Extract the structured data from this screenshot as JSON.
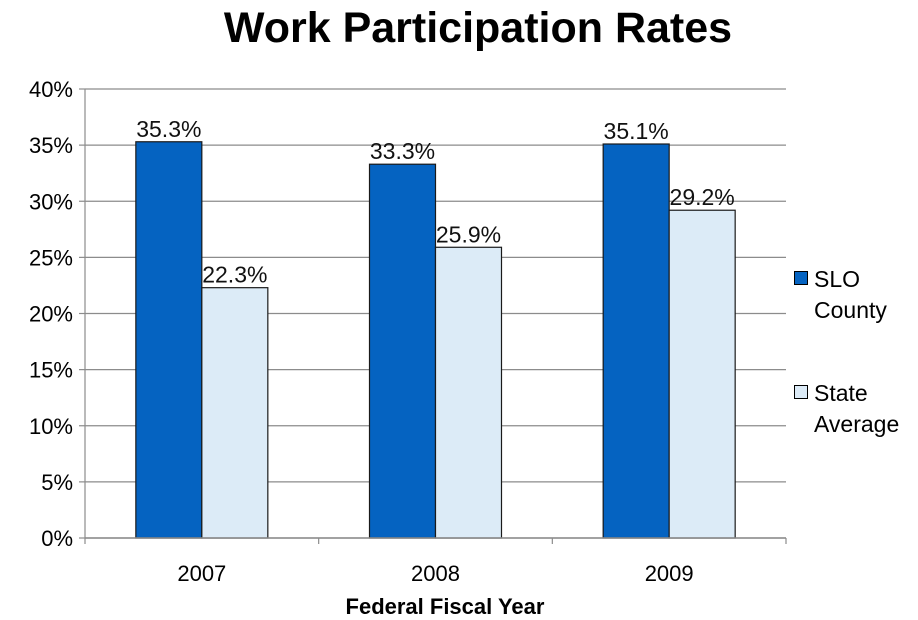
{
  "chart_data": {
    "type": "bar",
    "title": "Work Participation Rates",
    "xlabel": "Federal Fiscal Year",
    "ylabel": "",
    "categories": [
      "2007",
      "2008",
      "2009"
    ],
    "series": [
      {
        "name": "SLO County",
        "values": [
          35.3,
          33.3,
          35.1
        ],
        "color": "#0563C1",
        "labels": [
          "35.3%",
          "33.3%",
          "35.1%"
        ]
      },
      {
        "name": "State Average",
        "values": [
          22.3,
          25.9,
          29.2
        ],
        "color": "#DCEBF7",
        "labels": [
          "22.3%",
          "25.9%",
          "29.2%"
        ]
      }
    ],
    "ylim": [
      0,
      40
    ],
    "yticks": [
      0,
      5,
      10,
      15,
      20,
      25,
      30,
      35,
      40
    ],
    "ytick_labels": [
      "0%",
      "5%",
      "10%",
      "15%",
      "20%",
      "25%",
      "30%",
      "35%",
      "40%"
    ],
    "grid": true,
    "legend_position": "right"
  }
}
